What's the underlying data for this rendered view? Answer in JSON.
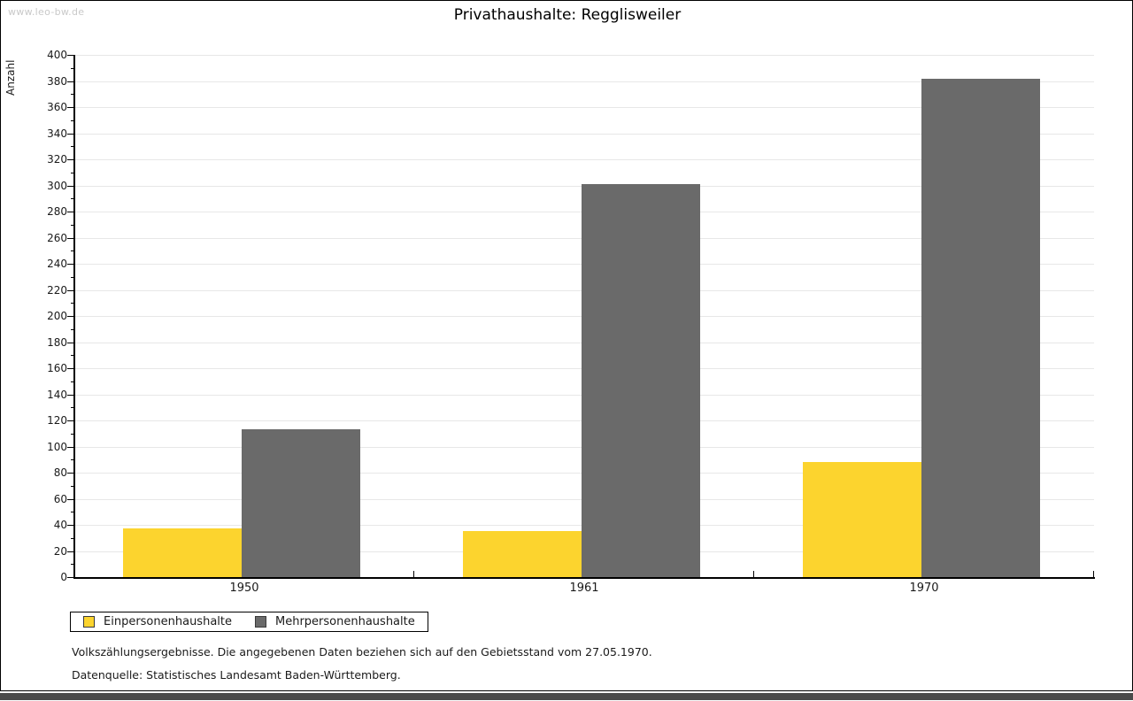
{
  "watermark": "www.leo-bw.de",
  "title": "Privathaushalte: Regglisweiler",
  "chart_data": {
    "type": "bar",
    "title": "Privathaushalte: Regglisweiler",
    "categories": [
      "1950",
      "1961",
      "1970"
    ],
    "series": [
      {
        "name": "Einpersonenhaushalte",
        "color": "#FCD42E",
        "values": [
          37,
          35,
          88
        ]
      },
      {
        "name": "Mehrpersonenhaushalte",
        "color": "#6A6A6A",
        "values": [
          113,
          301,
          382
        ]
      }
    ],
    "xlabel": "",
    "ylabel": "Anzahl",
    "ylim": [
      0,
      400
    ],
    "ytick_step": 20,
    "yminor_step": 10,
    "grid": true,
    "legend_position": "bottom-left",
    "gridline_color": "#e7e7e7",
    "axis_color": "#000000"
  },
  "footnotes": {
    "line1": "Volkszählungsergebnisse. Die angegebenen Daten beziehen sich auf den Gebietsstand vom 27.05.1970.",
    "line2": "Datenquelle: Statistisches Landesamt Baden-Württemberg."
  }
}
